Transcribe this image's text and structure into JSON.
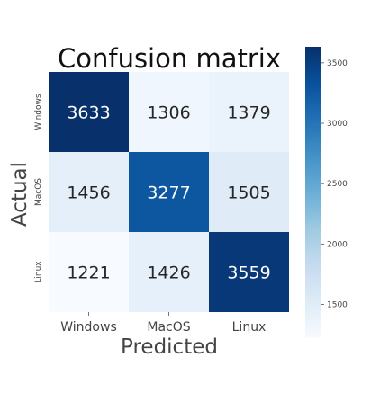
{
  "chart_data": {
    "type": "heatmap",
    "title": "Confusion matrix",
    "xlabel": "Predicted",
    "ylabel": "Actual",
    "x_categories": [
      "Windows",
      "MacOS",
      "Linux"
    ],
    "y_categories": [
      "Windows",
      "MacOS",
      "Linux"
    ],
    "values": [
      [
        3633,
        1306,
        1379
      ],
      [
        1456,
        3277,
        1505
      ],
      [
        1221,
        1426,
        3559
      ]
    ],
    "colormap": "Blues",
    "colorbar": {
      "range": [
        1221,
        3633
      ],
      "ticks": [
        1500,
        2000,
        2500,
        3000,
        3500
      ]
    },
    "colors": {
      "min": "#f7fbff",
      "max": "#08306b",
      "annot_dark_text": "#262626",
      "annot_light_text": "#ffffff"
    }
  }
}
